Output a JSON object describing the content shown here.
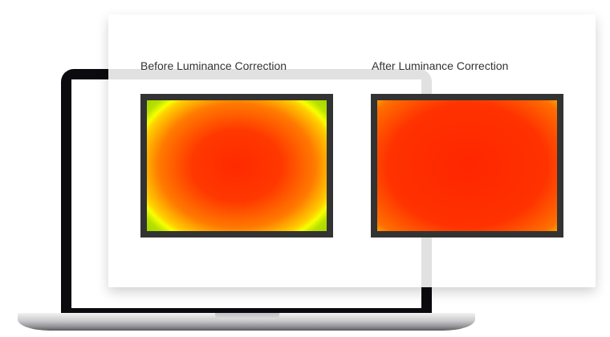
{
  "panels": [
    {
      "label": "Before Luminance Correction",
      "state": "uncorrected"
    },
    {
      "label": "After Luminance Correction",
      "state": "corrected"
    }
  ],
  "colors": {
    "frame": "#333333",
    "center": "#ff2a00",
    "edge_before": "#72c000",
    "edge_after": "#eaff00"
  }
}
